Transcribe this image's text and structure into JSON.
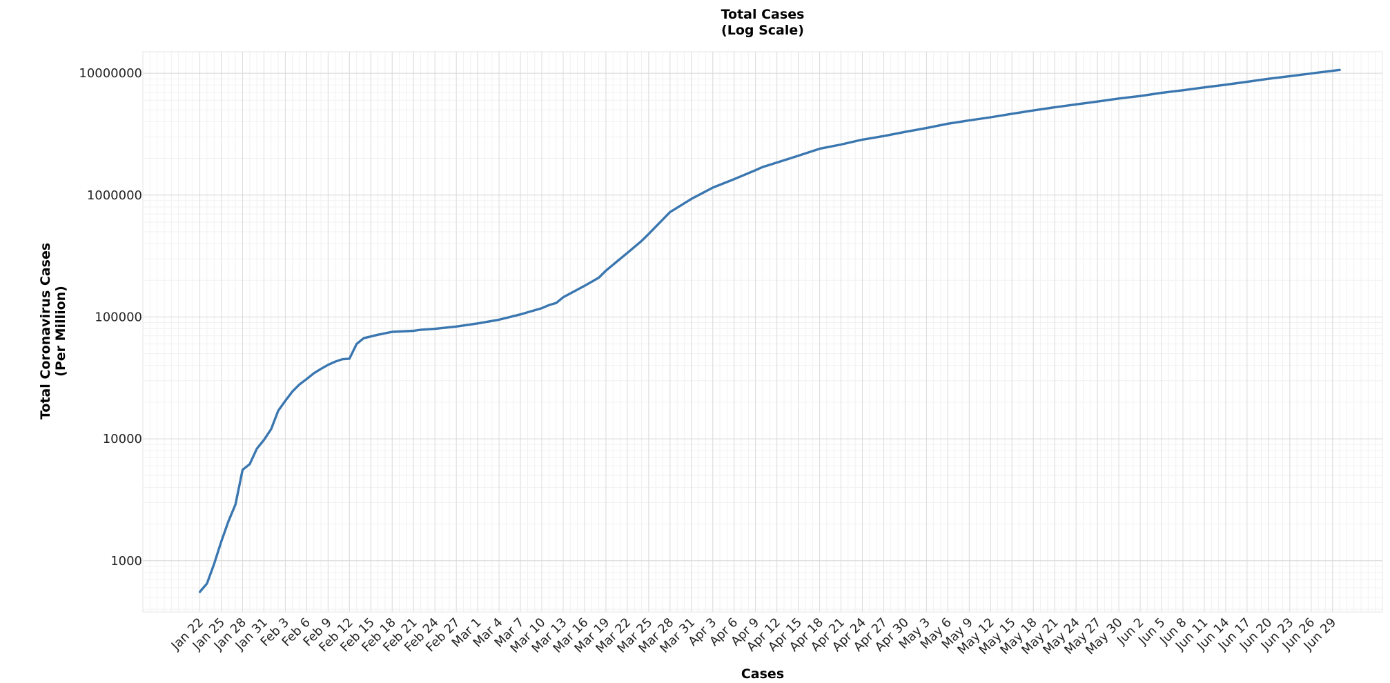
{
  "chart_data": {
    "type": "line",
    "title_line1": "Total Cases",
    "title_line2": "(Log Scale)",
    "xlabel": "Cases",
    "ylabel_line1": "Total Coronavirus Cases",
    "ylabel_line2": "(Per Million)",
    "y_scale": "log",
    "ylim": [
      380,
      15000000
    ],
    "xlim": [
      "2020-01-14",
      "2020-07-06"
    ],
    "grid": true,
    "line_color": "#3a76af",
    "y_ticks": [
      1000,
      10000,
      100000,
      1000000,
      10000000
    ],
    "y_tick_labels": [
      "1000",
      "10000",
      "100000",
      "1000000",
      "10000000"
    ],
    "x_tick_dates": [
      "2020-01-22",
      "2020-01-25",
      "2020-01-28",
      "2020-01-31",
      "2020-02-03",
      "2020-02-06",
      "2020-02-09",
      "2020-02-12",
      "2020-02-15",
      "2020-02-18",
      "2020-02-21",
      "2020-02-24",
      "2020-02-27",
      "2020-03-01",
      "2020-03-04",
      "2020-03-07",
      "2020-03-10",
      "2020-03-13",
      "2020-03-16",
      "2020-03-19",
      "2020-03-22",
      "2020-03-25",
      "2020-03-28",
      "2020-03-31",
      "2020-04-03",
      "2020-04-06",
      "2020-04-09",
      "2020-04-12",
      "2020-04-15",
      "2020-04-18",
      "2020-04-21",
      "2020-04-24",
      "2020-04-27",
      "2020-04-30",
      "2020-05-03",
      "2020-05-06",
      "2020-05-09",
      "2020-05-12",
      "2020-05-15",
      "2020-05-18",
      "2020-05-21",
      "2020-05-24",
      "2020-05-27",
      "2020-05-30",
      "2020-06-02",
      "2020-06-05",
      "2020-06-08",
      "2020-06-11",
      "2020-06-14",
      "2020-06-17",
      "2020-06-20",
      "2020-06-23",
      "2020-06-26",
      "2020-06-29"
    ],
    "x_tick_labels": [
      "Jan 22",
      "Jan 25",
      "Jan 28",
      "Jan 31",
      "Feb 3",
      "Feb 6",
      "Feb 9",
      "Feb 12",
      "Feb 15",
      "Feb 18",
      "Feb 21",
      "Feb 24",
      "Feb 27",
      "Mar 1",
      "Mar 4",
      "Mar 7",
      "Mar 10",
      "Mar 13",
      "Mar 16",
      "Mar 19",
      "Mar 22",
      "Mar 25",
      "Mar 28",
      "Mar 31",
      "Apr 3",
      "Apr 6",
      "Apr 9",
      "Apr 12",
      "Apr 15",
      "Apr 18",
      "Apr 21",
      "Apr 24",
      "Apr 27",
      "Apr 30",
      "May 3",
      "May 6",
      "May 9",
      "May 12",
      "May 15",
      "May 18",
      "May 21",
      "May 24",
      "May 27",
      "May 30",
      "Jun 2",
      "Jun 5",
      "Jun 8",
      "Jun 11",
      "Jun 14",
      "Jun 17",
      "Jun 20",
      "Jun 23",
      "Jun 26",
      "Jun 29"
    ],
    "series": [
      {
        "x": [
          "2020-01-22",
          "2020-01-23",
          "2020-01-24",
          "2020-01-25",
          "2020-01-26",
          "2020-01-27",
          "2020-01-28",
          "2020-01-29",
          "2020-01-30",
          "2020-01-31",
          "2020-02-01",
          "2020-02-02",
          "2020-02-03",
          "2020-02-04",
          "2020-02-05",
          "2020-02-06",
          "2020-02-07",
          "2020-02-08",
          "2020-02-09",
          "2020-02-10",
          "2020-02-11",
          "2020-02-12",
          "2020-02-13",
          "2020-02-14",
          "2020-02-16",
          "2020-02-18",
          "2020-02-21",
          "2020-02-22",
          "2020-02-24",
          "2020-02-27",
          "2020-03-01",
          "2020-03-04",
          "2020-03-07",
          "2020-03-10",
          "2020-03-11",
          "2020-03-12",
          "2020-03-13",
          "2020-03-16",
          "2020-03-18",
          "2020-03-19",
          "2020-03-22",
          "2020-03-24",
          "2020-03-25",
          "2020-03-28",
          "2020-03-31",
          "2020-04-03",
          "2020-04-06",
          "2020-04-09",
          "2020-04-10",
          "2020-04-12",
          "2020-04-15",
          "2020-04-18",
          "2020-04-21",
          "2020-04-24",
          "2020-04-27",
          "2020-04-30",
          "2020-05-03",
          "2020-05-06",
          "2020-05-09",
          "2020-05-12",
          "2020-05-15",
          "2020-05-18",
          "2020-05-21",
          "2020-05-24",
          "2020-05-27",
          "2020-05-30",
          "2020-06-02",
          "2020-06-05",
          "2020-06-08",
          "2020-06-11",
          "2020-06-14",
          "2020-06-17",
          "2020-06-20",
          "2020-06-23",
          "2020-06-26",
          "2020-06-30"
        ],
        "values": [
          555,
          650,
          940,
          1430,
          2100,
          2900,
          5580,
          6200,
          8300,
          9800,
          12000,
          17000,
          20500,
          24500,
          28000,
          31000,
          34500,
          37500,
          40500,
          43000,
          45000,
          45500,
          60000,
          67000,
          71500,
          75500,
          77000,
          78500,
          80000,
          83500,
          88500,
          95000,
          105000,
          118000,
          125000,
          130000,
          145000,
          180000,
          210000,
          240000,
          335000,
          420000,
          480000,
          725000,
          930000,
          1150000,
          1350000,
          1600000,
          1700000,
          1850000,
          2100000,
          2400000,
          2600000,
          2850000,
          3050000,
          3300000,
          3550000,
          3850000,
          4100000,
          4350000,
          4650000,
          4950000,
          5250000,
          5550000,
          5850000,
          6200000,
          6500000,
          6900000,
          7250000,
          7650000,
          8050000,
          8500000,
          9000000,
          9450000,
          9950000,
          10650000
        ]
      }
    ]
  }
}
